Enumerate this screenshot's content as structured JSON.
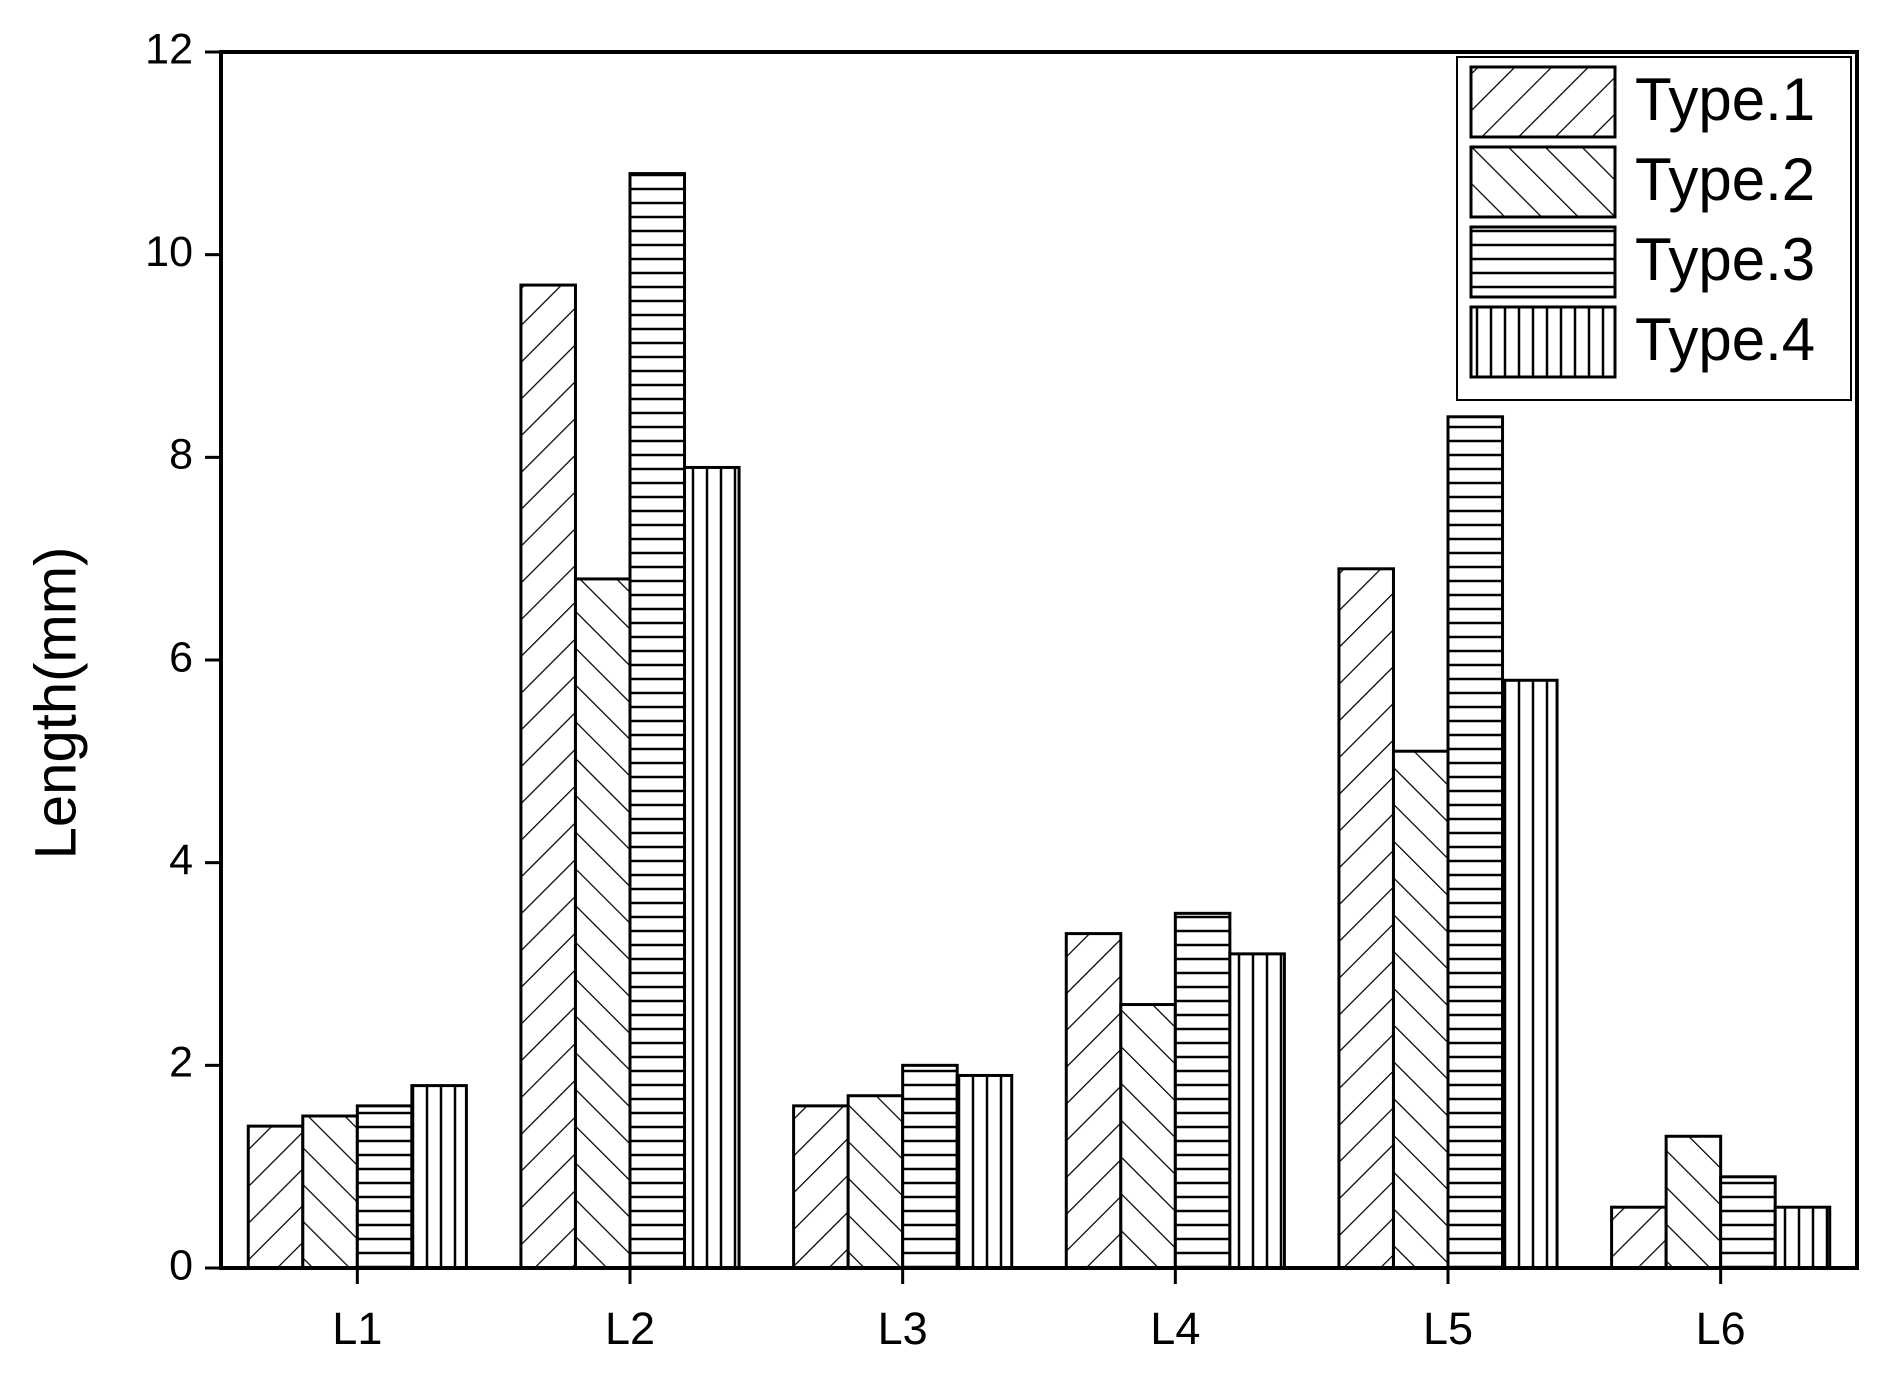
{
  "chart_data": {
    "type": "bar",
    "y_label": "Length(mm)",
    "categories": [
      "L1",
      "L2",
      "L3",
      "L4",
      "L5",
      "L6"
    ],
    "series": [
      {
        "name": "Type.1",
        "color": "#000000",
        "hatch": "diagonal-up",
        "values": [
          1.4,
          9.7,
          1.6,
          3.3,
          6.9,
          0.6
        ]
      },
      {
        "name": "Type.2",
        "color": "#000000",
        "hatch": "diagonal-down",
        "values": [
          1.5,
          6.8,
          1.7,
          2.6,
          5.1,
          1.3
        ]
      },
      {
        "name": "Type.3",
        "color": "#000000",
        "hatch": "horizontal",
        "values": [
          1.6,
          10.8,
          2.0,
          3.5,
          8.4,
          0.9
        ]
      },
      {
        "name": "Type.4",
        "color": "#000000",
        "hatch": "vertical",
        "values": [
          1.8,
          7.9,
          1.9,
          3.1,
          5.8,
          0.6
        ]
      }
    ],
    "ylim": [
      0,
      12
    ],
    "yticks": [
      0,
      2,
      4,
      6,
      8,
      10,
      12
    ],
    "grid": false,
    "legend": "upper-right"
  }
}
